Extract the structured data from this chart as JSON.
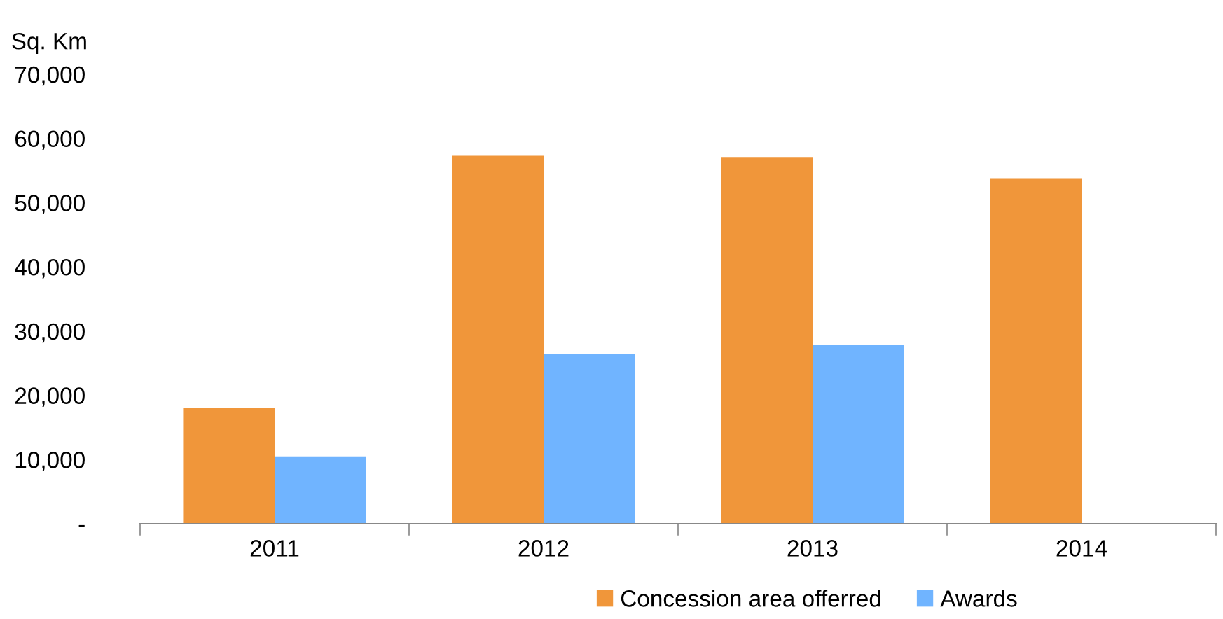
{
  "chart_data": {
    "type": "bar",
    "ylabel": "Sq. Km",
    "categories": [
      "2011",
      "2012",
      "2013",
      "2014"
    ],
    "series": [
      {
        "name": "Concession area offerred",
        "color": "#f0963a",
        "values": [
          18000,
          57300,
          57100,
          53800
        ]
      },
      {
        "name": "Awards",
        "color": "#70b4ff",
        "values": [
          10500,
          26400,
          27900,
          null
        ]
      }
    ],
    "ylim": [
      0,
      70000
    ],
    "yticks": [
      {
        "value": 0,
        "label": "-"
      },
      {
        "value": 10000,
        "label": "10,000"
      },
      {
        "value": 20000,
        "label": "20,000"
      },
      {
        "value": 30000,
        "label": "30,000"
      },
      {
        "value": 40000,
        "label": "40,000"
      },
      {
        "value": 50000,
        "label": "50,000"
      },
      {
        "value": 60000,
        "label": "60,000"
      },
      {
        "value": 70000,
        "label": "70,000"
      }
    ],
    "grid": false,
    "legend": "bottom"
  }
}
